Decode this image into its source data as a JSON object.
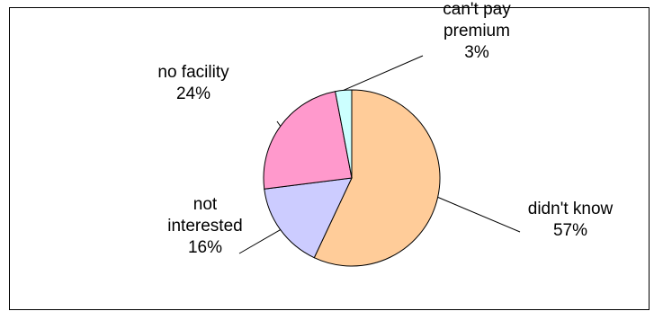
{
  "chart_data": {
    "type": "pie",
    "slices": [
      {
        "label_lines": [
          "didn't know"
        ],
        "percent_label": "57%",
        "value": 57,
        "color": "#FFCC99"
      },
      {
        "label_lines": [
          "not",
          "interested"
        ],
        "percent_label": "16%",
        "value": 16,
        "color": "#CCCCFF"
      },
      {
        "label_lines": [
          "no facility"
        ],
        "percent_label": "24%",
        "value": 24,
        "color": "#FF99CC"
      },
      {
        "label_lines": [
          "can't pay",
          "premium"
        ],
        "percent_label": "3%",
        "value": 3,
        "color": "#CCFFFF"
      }
    ]
  }
}
